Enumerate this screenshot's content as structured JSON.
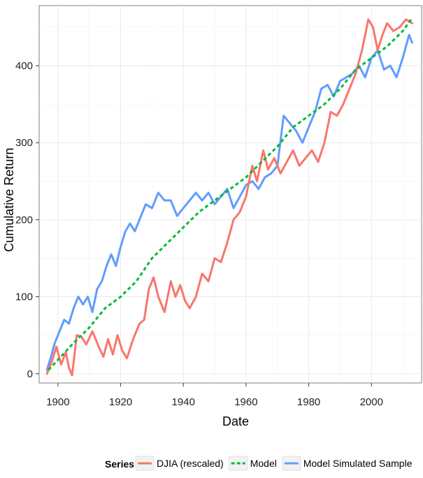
{
  "chart_data": {
    "type": "line",
    "title": "",
    "xlabel": "Date",
    "ylabel": "Cumulative Return",
    "xlim": [
      1894,
      2016
    ],
    "ylim": [
      -12,
      478
    ],
    "x_ticks": [
      1900,
      1920,
      1940,
      1960,
      1980,
      2000
    ],
    "y_ticks": [
      0,
      100,
      200,
      300,
      400
    ],
    "grid": true,
    "legend": {
      "title": "Series",
      "position": "bottom",
      "entries": [
        "DJIA (rescaled)",
        "Model",
        "Model Simulated Sample"
      ]
    },
    "series": [
      {
        "name": "DJIA (rescaled)",
        "color": "#F8766D",
        "style": "solid",
        "x": [
          1896.5,
          1898,
          1899.5,
          1901,
          1902.5,
          1903.5,
          1904.5,
          1906,
          1907.5,
          1909,
          1911,
          1913,
          1914.5,
          1916,
          1917.5,
          1919,
          1920.5,
          1922,
          1924,
          1926,
          1927.5,
          1929,
          1930.5,
          1932,
          1934,
          1936,
          1937.5,
          1939,
          1940.5,
          1942,
          1944,
          1946,
          1948,
          1950,
          1952,
          1954,
          1956,
          1958,
          1960,
          1962,
          1963.5,
          1965.5,
          1967,
          1969,
          1971,
          1973,
          1975,
          1977,
          1979,
          1981,
          1983,
          1985,
          1987,
          1989,
          1991,
          1993,
          1995,
          1997,
          1999,
          2000.5,
          2002,
          2003.5,
          2005,
          2007,
          2009,
          2011,
          2013
        ],
        "y": [
          0,
          15,
          35,
          12,
          28,
          8,
          -2,
          50,
          48,
          38,
          55,
          35,
          22,
          45,
          25,
          50,
          30,
          20,
          45,
          65,
          70,
          110,
          125,
          100,
          80,
          120,
          100,
          115,
          95,
          85,
          100,
          130,
          120,
          150,
          145,
          170,
          200,
          210,
          230,
          270,
          250,
          290,
          265,
          280,
          260,
          275,
          290,
          270,
          280,
          290,
          275,
          300,
          340,
          335,
          350,
          370,
          390,
          420,
          460,
          450,
          420,
          440,
          455,
          445,
          450,
          460,
          455
        ]
      },
      {
        "name": "Model",
        "color": "#00BA38",
        "style": "dashed",
        "x": [
          1897,
          1900,
          1905,
          1910,
          1915,
          1920,
          1925,
          1930,
          1935,
          1940,
          1945,
          1950,
          1955,
          1960,
          1965,
          1970,
          1975,
          1980,
          1985,
          1990,
          1995,
          2000,
          2005,
          2010,
          2013
        ],
        "y": [
          5,
          18,
          40,
          60,
          85,
          100,
          120,
          150,
          170,
          190,
          210,
          225,
          240,
          255,
          275,
          295,
          320,
          335,
          350,
          370,
          395,
          410,
          425,
          445,
          462
        ]
      },
      {
        "name": "Model Simulated Sample",
        "color": "#619CFF",
        "style": "solid",
        "x": [
          1896.5,
          1898,
          1899,
          1900.5,
          1902,
          1903.5,
          1905,
          1906.5,
          1908,
          1909.5,
          1911,
          1912.5,
          1914,
          1915.5,
          1917,
          1918.5,
          1920,
          1921.5,
          1923,
          1924.5,
          1926,
          1928,
          1930,
          1932,
          1934,
          1936,
          1938,
          1940,
          1942,
          1944,
          1946,
          1948,
          1950,
          1952,
          1954,
          1956,
          1958,
          1960,
          1962,
          1964,
          1966,
          1968,
          1970,
          1972,
          1974,
          1976,
          1978,
          1980,
          1982,
          1984,
          1986,
          1988,
          1990,
          1992,
          1994,
          1996,
          1998,
          2000,
          2002,
          2004,
          2006,
          2008,
          2010,
          2012,
          2013
        ],
        "y": [
          5,
          25,
          40,
          55,
          70,
          65,
          85,
          100,
          90,
          100,
          80,
          110,
          120,
          140,
          155,
          140,
          165,
          185,
          195,
          185,
          200,
          220,
          215,
          235,
          225,
          225,
          205,
          215,
          225,
          235,
          225,
          235,
          220,
          230,
          240,
          215,
          230,
          245,
          250,
          240,
          255,
          260,
          270,
          335,
          325,
          315,
          300,
          320,
          340,
          370,
          375,
          360,
          380,
          385,
          390,
          400,
          385,
          410,
          420,
          395,
          400,
          385,
          410,
          440,
          430
        ]
      }
    ]
  }
}
